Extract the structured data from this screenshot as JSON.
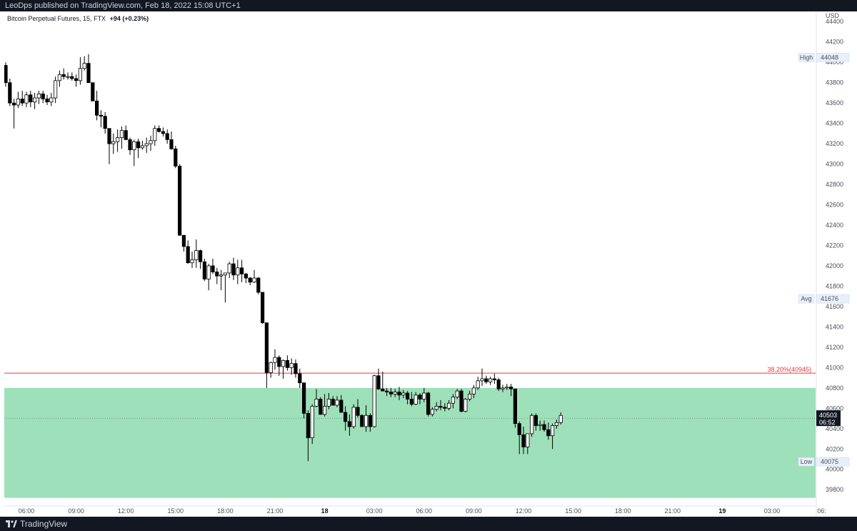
{
  "header": {
    "publisher_line": "LeoDps published on TradingView.com, Feb 18, 2022 15:08 UTC+1"
  },
  "legend": {
    "symbol": "Bitcoin Perpetual Futures, 15, FTX",
    "change": "+94 (+0.23%)"
  },
  "footer": {
    "brand": "TradingView"
  },
  "colors": {
    "accent_zone": "#9ee0b9",
    "fib_line": "#e53935",
    "candle_up": "#ffffff",
    "candle_down": "#000000",
    "background": "#ffffff",
    "bar": "#131722"
  },
  "chart_data": {
    "type": "candlestick",
    "currency_label": "USD",
    "y_ticks": [
      39800,
      40000,
      40200,
      40400,
      40600,
      40800,
      41000,
      41200,
      41400,
      41600,
      41800,
      42000,
      42200,
      42400,
      42600,
      42800,
      43000,
      43200,
      43400,
      43600,
      43800,
      44000,
      44200,
      44400
    ],
    "ylim": [
      39640,
      44500
    ],
    "x_ticks": [
      {
        "label": "06:00",
        "bar": 5,
        "bold": false
      },
      {
        "label": "09:00",
        "bar": 17,
        "bold": false
      },
      {
        "label": "12:00",
        "bar": 29,
        "bold": false
      },
      {
        "label": "15:00",
        "bar": 41,
        "bold": false
      },
      {
        "label": "18:00",
        "bar": 53,
        "bold": false
      },
      {
        "label": "21:00",
        "bar": 65,
        "bold": false
      },
      {
        "label": "18",
        "bar": 77,
        "bold": true
      },
      {
        "label": "03:00",
        "bar": 89,
        "bold": false
      },
      {
        "label": "06:00",
        "bar": 101,
        "bold": false
      },
      {
        "label": "09:00",
        "bar": 113,
        "bold": false
      },
      {
        "label": "12:00",
        "bar": 125,
        "bold": false
      },
      {
        "label": "15:00",
        "bar": 137,
        "bold": false
      },
      {
        "label": "18:00",
        "bar": 149,
        "bold": false
      },
      {
        "label": "21:00",
        "bar": 161,
        "bold": false
      },
      {
        "label": "19",
        "bar": 173,
        "bold": true
      },
      {
        "label": "03:00",
        "bar": 185,
        "bold": false
      },
      {
        "label": "06:",
        "bar": 197,
        "bold": false
      }
    ],
    "markers": [
      {
        "label": "High",
        "value": 44048
      },
      {
        "label": "Avg",
        "value": 41676
      },
      {
        "label": "Low",
        "value": 40075
      }
    ],
    "last_price": {
      "value": 40503,
      "countdown": "06:52"
    },
    "fib_level": {
      "label": "38.20%(40945)",
      "value": 40945
    },
    "zone": {
      "top": 40800,
      "bottom": 39720
    },
    "candles": [
      [
        43970,
        44000,
        43760,
        43800
      ],
      [
        43800,
        43840,
        43570,
        43600
      ],
      [
        43600,
        43640,
        43350,
        43580
      ],
      [
        43580,
        43710,
        43550,
        43640
      ],
      [
        43640,
        43720,
        43570,
        43600
      ],
      [
        43600,
        43710,
        43560,
        43680
      ],
      [
        43680,
        43720,
        43560,
        43610
      ],
      [
        43610,
        43700,
        43540,
        43650
      ],
      [
        43650,
        43720,
        43590,
        43690
      ],
      [
        43690,
        43720,
        43600,
        43640
      ],
      [
        43640,
        43680,
        43580,
        43610
      ],
      [
        43610,
        43700,
        43570,
        43650
      ],
      [
        43650,
        43860,
        43600,
        43820
      ],
      [
        43820,
        43920,
        43760,
        43880
      ],
      [
        43880,
        43940,
        43830,
        43860
      ],
      [
        43860,
        43900,
        43830,
        43860
      ],
      [
        43860,
        43900,
        43820,
        43840
      ],
      [
        43840,
        43880,
        43760,
        43820
      ],
      [
        43820,
        44050,
        43780,
        43940
      ],
      [
        43940,
        44060,
        43920,
        43990
      ],
      [
        43990,
        44080,
        43800,
        43800
      ],
      [
        43800,
        43800,
        43620,
        43620
      ],
      [
        43620,
        43720,
        43430,
        43480
      ],
      [
        43480,
        43530,
        43360,
        43470
      ],
      [
        43470,
        43510,
        43300,
        43350
      ],
      [
        43350,
        43350,
        43000,
        43200
      ],
      [
        43200,
        43300,
        43100,
        43220
      ],
      [
        43220,
        43340,
        43120,
        43260
      ],
      [
        43260,
        43370,
        43150,
        43330
      ],
      [
        43330,
        43380,
        43250,
        43240
      ],
      [
        43240,
        43260,
        43090,
        43140
      ],
      [
        43140,
        43240,
        42980,
        43220
      ],
      [
        43220,
        43250,
        43060,
        43160
      ],
      [
        43160,
        43230,
        43140,
        43180
      ],
      [
        43180,
        43260,
        43110,
        43200
      ],
      [
        43200,
        43280,
        43130,
        43230
      ],
      [
        43230,
        43380,
        43180,
        43350
      ],
      [
        43350,
        43380,
        43310,
        43320
      ],
      [
        43320,
        43360,
        43270,
        43300
      ],
      [
        43300,
        43340,
        43200,
        43240
      ],
      [
        43240,
        43320,
        43140,
        43150
      ],
      [
        43150,
        43180,
        42960,
        42980
      ],
      [
        42980,
        43000,
        42300,
        42300
      ],
      [
        42300,
        42300,
        42140,
        42190
      ],
      [
        42190,
        42250,
        42020,
        42030
      ],
      [
        42030,
        42140,
        41980,
        42060
      ],
      [
        42060,
        42260,
        41980,
        42150
      ],
      [
        42150,
        42160,
        41970,
        42040
      ],
      [
        42040,
        42070,
        41850,
        41870
      ],
      [
        41870,
        42020,
        41760,
        42000
      ],
      [
        42000,
        42070,
        41920,
        41940
      ],
      [
        41940,
        41980,
        41820,
        41900
      ],
      [
        41900,
        41960,
        41760,
        41910
      ],
      [
        41910,
        41920,
        41640,
        41930
      ],
      [
        41930,
        42040,
        41880,
        42020
      ],
      [
        42020,
        42080,
        41860,
        41910
      ],
      [
        41910,
        42060,
        41820,
        41980
      ],
      [
        41980,
        42060,
        41840,
        41920
      ],
      [
        41920,
        41930,
        41830,
        41880
      ],
      [
        41880,
        41890,
        41810,
        41840
      ],
      [
        41840,
        41960,
        41830,
        41880
      ],
      [
        41880,
        41890,
        41720,
        41740
      ],
      [
        41740,
        41740,
        41430,
        41440
      ],
      [
        41440,
        41440,
        40800,
        40950
      ],
      [
        40950,
        41060,
        40900,
        41050
      ],
      [
        41050,
        41180,
        40980,
        41100
      ],
      [
        41100,
        41120,
        40920,
        41010
      ],
      [
        41010,
        41080,
        40890,
        41070
      ],
      [
        41070,
        41120,
        40970,
        41000
      ],
      [
        41000,
        41090,
        40930,
        41040
      ],
      [
        41040,
        41080,
        40900,
        40940
      ],
      [
        40940,
        40990,
        40800,
        40850
      ],
      [
        40850,
        40850,
        40500,
        40550
      ],
      [
        40550,
        40580,
        40080,
        40310
      ],
      [
        40310,
        40640,
        40250,
        40620
      ],
      [
        40620,
        40790,
        40610,
        40690
      ],
      [
        40690,
        40710,
        40560,
        40540
      ],
      [
        40540,
        40740,
        40520,
        40620
      ],
      [
        40620,
        40750,
        40590,
        40690
      ],
      [
        40690,
        40720,
        40640,
        40630
      ],
      [
        40630,
        40720,
        40610,
        40680
      ],
      [
        40680,
        40730,
        40570,
        40560
      ],
      [
        40560,
        40620,
        40380,
        40470
      ],
      [
        40470,
        40540,
        40330,
        40420
      ],
      [
        40420,
        40640,
        40400,
        40610
      ],
      [
        40610,
        40690,
        40510,
        40530
      ],
      [
        40530,
        40540,
        40440,
        40420
      ],
      [
        40420,
        40630,
        40370,
        40530
      ],
      [
        40530,
        40550,
        40370,
        40420
      ],
      [
        40420,
        40930,
        40410,
        40920
      ],
      [
        40920,
        40990,
        40780,
        40790
      ],
      [
        40790,
        40960,
        40770,
        40770
      ],
      [
        40770,
        40800,
        40720,
        40760
      ],
      [
        40760,
        40800,
        40710,
        40740
      ],
      [
        40740,
        40790,
        40710,
        40760
      ],
      [
        40760,
        40810,
        40680,
        40730
      ],
      [
        40730,
        40780,
        40700,
        40750
      ],
      [
        40750,
        40770,
        40640,
        40690
      ],
      [
        40690,
        40760,
        40620,
        40640
      ],
      [
        40640,
        40760,
        40630,
        40730
      ],
      [
        40730,
        40750,
        40640,
        40690
      ],
      [
        40690,
        40800,
        40660,
        40750
      ],
      [
        40750,
        40760,
        40520,
        40540
      ],
      [
        40540,
        40610,
        40520,
        40590
      ],
      [
        40590,
        40660,
        40570,
        40620
      ],
      [
        40620,
        40680,
        40580,
        40610
      ],
      [
        40610,
        40650,
        40570,
        40600
      ],
      [
        40600,
        40680,
        40580,
        40650
      ],
      [
        40650,
        40740,
        40600,
        40710
      ],
      [
        40710,
        40790,
        40690,
        40770
      ],
      [
        40770,
        40790,
        40560,
        40570
      ],
      [
        40570,
        40700,
        40560,
        40690
      ],
      [
        40690,
        40770,
        40670,
        40740
      ],
      [
        40740,
        40830,
        40700,
        40800
      ],
      [
        40800,
        40910,
        40780,
        40870
      ],
      [
        40870,
        40990,
        40820,
        40890
      ],
      [
        40890,
        40920,
        40840,
        40860
      ],
      [
        40860,
        40910,
        40830,
        40890
      ],
      [
        40890,
        40940,
        40840,
        40880
      ],
      [
        40880,
        40900,
        40770,
        40790
      ],
      [
        40790,
        40830,
        40760,
        40800
      ],
      [
        40800,
        40840,
        40780,
        40810
      ],
      [
        40810,
        40840,
        40720,
        40790
      ],
      [
        40790,
        40790,
        40410,
        40450
      ],
      [
        40450,
        40470,
        40150,
        40340
      ],
      [
        40340,
        40420,
        40150,
        40220
      ],
      [
        40220,
        40350,
        40150,
        40350
      ],
      [
        40350,
        40550,
        40320,
        40530
      ],
      [
        40530,
        40550,
        40380,
        40430
      ],
      [
        40430,
        40480,
        40380,
        40440
      ],
      [
        40440,
        40480,
        40370,
        40390
      ],
      [
        40390,
        40460,
        40290,
        40330
      ],
      [
        40330,
        40450,
        40200,
        40430
      ],
      [
        40430,
        40490,
        40400,
        40460
      ],
      [
        40460,
        40560,
        40440,
        40530
      ]
    ]
  }
}
